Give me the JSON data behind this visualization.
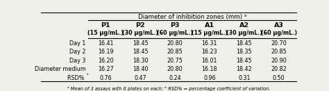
{
  "title": "Diameter of inhibition zones (mm)",
  "title_superscript": "a",
  "col_headers": [
    "P1",
    "P2",
    "P3",
    "A1",
    "A2",
    "A3"
  ],
  "col_subheaders": [
    "(15 μg/mL.)",
    "(30 μg/mL.)",
    "(60 μg/mL.)",
    "(15 μg/mL.)",
    "(30 μg/mL.)",
    "(60 μg/mL.)"
  ],
  "row_labels": [
    "Day 1",
    "Day 2",
    "Day 3",
    "Diameter medium",
    "RSD% b"
  ],
  "data": [
    [
      "16.41",
      "18.45",
      "20.80",
      "16.31",
      "18.45",
      "20.70"
    ],
    [
      "16.19",
      "18.45",
      "20.85",
      "16.23",
      "18.35",
      "20.85"
    ],
    [
      "16.20",
      "18.30",
      "20.75",
      "16.01",
      "18.45",
      "20.90"
    ],
    [
      "16.27",
      "18.40",
      "20.80",
      "16.18",
      "18.42",
      "20.82"
    ],
    [
      "0.76",
      "0.47",
      "0.24",
      "0.96",
      "0.31",
      "0.50"
    ]
  ],
  "footnote": "ᵃ Mean of 3 assays with 6 plates on each; ᵇ RSD% = percentage coefficient of variation.",
  "bg_color": "#f0f0eb"
}
